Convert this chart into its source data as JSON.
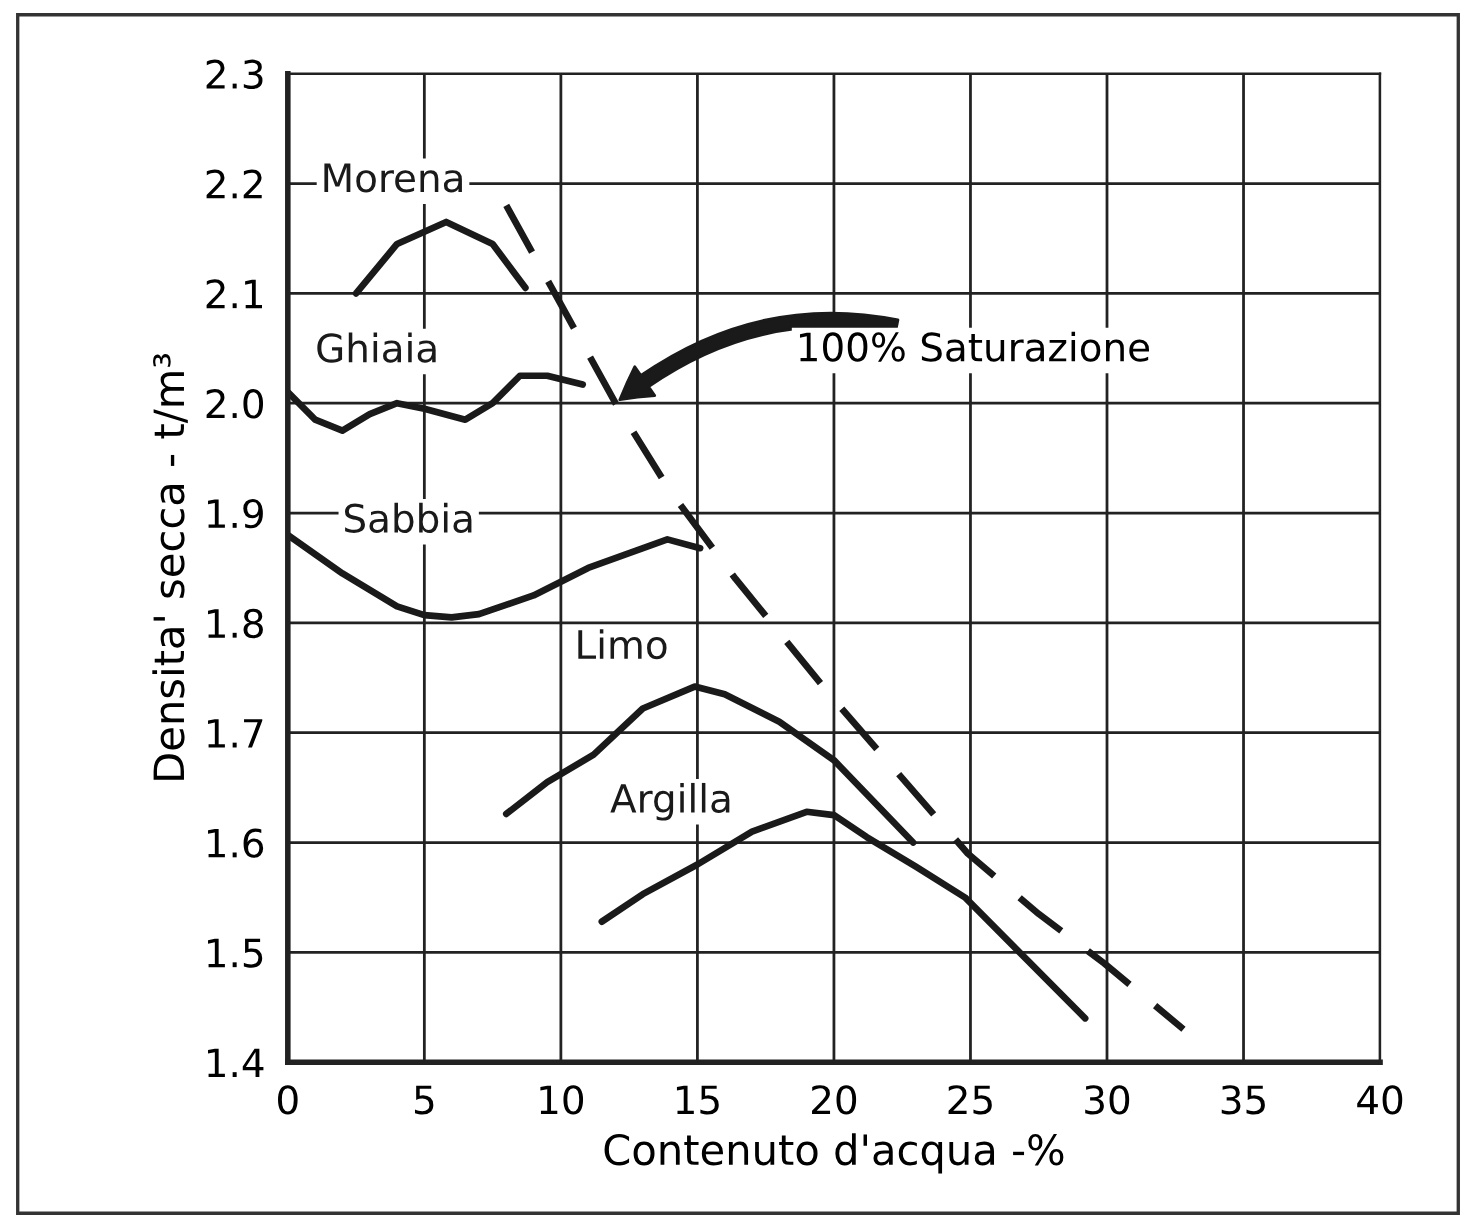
{
  "chart_data": {
    "type": "line",
    "xlabel": "Contenuto d'acqua -%",
    "ylabel": "Densita' secca - t/m³",
    "xlim": [
      0,
      40
    ],
    "ylim": [
      1.4,
      2.3
    ],
    "xticks": [
      0,
      5,
      10,
      15,
      20,
      25,
      30,
      35,
      40
    ],
    "yticks": [
      1.4,
      1.5,
      1.6,
      1.7,
      1.8,
      1.9,
      {
        "value": 2.0,
        "label": "2.0"
      },
      2.1,
      2.2,
      2.3
    ],
    "grid": true,
    "marker": "none",
    "legend": false,
    "series": [
      {
        "name": "Morena",
        "color": "#1a1a1a",
        "x": [
          2.5,
          4,
          5.8,
          7.5,
          8.7
        ],
        "values": [
          2.1,
          2.145,
          2.165,
          2.145,
          2.105
        ]
      },
      {
        "name": "Ghiaia",
        "color": "#1a1a1a",
        "x": [
          0,
          1,
          2,
          3,
          4,
          5,
          6.5,
          7.5,
          8.5,
          9.5,
          10.8
        ],
        "values": [
          2.01,
          1.985,
          1.975,
          1.99,
          2.0,
          1.995,
          1.985,
          2.0,
          2.025,
          2.025,
          2.017
        ]
      },
      {
        "name": "Sabbia",
        "color": "#1a1a1a",
        "x": [
          0,
          2,
          4,
          5,
          6,
          7,
          9,
          11,
          13.9,
          15.1
        ],
        "values": [
          1.88,
          1.845,
          1.815,
          1.807,
          1.805,
          1.808,
          1.825,
          1.85,
          1.876,
          1.868
        ]
      },
      {
        "name": "Limo",
        "color": "#1a1a1a",
        "x": [
          8,
          9.5,
          11.2,
          13,
          14.9,
          16,
          18,
          20,
          22.9
        ],
        "values": [
          1.626,
          1.655,
          1.68,
          1.722,
          1.742,
          1.735,
          1.71,
          1.675,
          1.6
        ]
      },
      {
        "name": "Argilla",
        "color": "#1a1a1a",
        "x": [
          11.5,
          13,
          15,
          17,
          19,
          20,
          21.2,
          23,
          24.8,
          27,
          29.2
        ],
        "values": [
          1.528,
          1.553,
          1.58,
          1.61,
          1.628,
          1.625,
          1.605,
          1.578,
          1.55,
          1.495,
          1.44
        ]
      },
      {
        "color": "#1a1a1a",
        "line_style": "dashed",
        "x": [
          8,
          10,
          12,
          14,
          16.4,
          20,
          24.9,
          27.5,
          29.9,
          32.8
        ],
        "values": [
          2.18,
          2.09,
          2.0,
          1.92,
          1.84,
          1.73,
          1.59,
          1.535,
          1.49,
          1.43
        ]
      }
    ],
    "annotations": [
      "100% Saturazione"
    ]
  }
}
